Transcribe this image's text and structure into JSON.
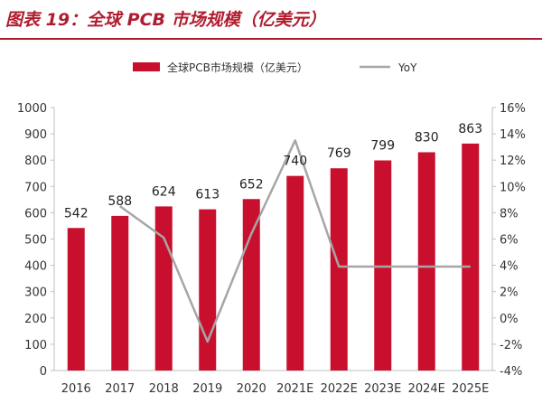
{
  "figure_title": "图表 19：全球 PCB 市场规模（亿美元）",
  "colors": {
    "bar": "#c8102e",
    "line": "#a6a6a6",
    "title": "#b01c2e"
  },
  "chart_data": {
    "type": "bar",
    "title": "",
    "categories": [
      "2016",
      "2017",
      "2018",
      "2019",
      "2020",
      "2021E",
      "2022E",
      "2023E",
      "2024E",
      "2025E"
    ],
    "series": [
      {
        "name": "全球PCB市场规模（亿美元）",
        "type": "bar",
        "axis": "left",
        "values": [
          542,
          588,
          624,
          613,
          652,
          740,
          769,
          799,
          830,
          863
        ]
      },
      {
        "name": "YoY",
        "type": "line",
        "axis": "right",
        "values": [
          null,
          8.5,
          6.1,
          -1.8,
          6.4,
          13.5,
          3.9,
          3.9,
          3.9,
          3.9
        ]
      }
    ],
    "data_labels": [
      "542",
      "588",
      "624",
      "613",
      "652",
      "740",
      "769",
      "799",
      "830",
      "863"
    ],
    "y_left": {
      "ylim": [
        0,
        1000
      ],
      "ticks": [
        "0",
        "100",
        "200",
        "300",
        "400",
        "500",
        "600",
        "700",
        "800",
        "900",
        "1000"
      ]
    },
    "y_right": {
      "ylim": [
        -4,
        16
      ],
      "ticks": [
        "-4%",
        "-2%",
        "0%",
        "2%",
        "4%",
        "6%",
        "8%",
        "10%",
        "12%",
        "14%",
        "16%"
      ]
    },
    "legend_position": "top-center",
    "grid": false
  }
}
